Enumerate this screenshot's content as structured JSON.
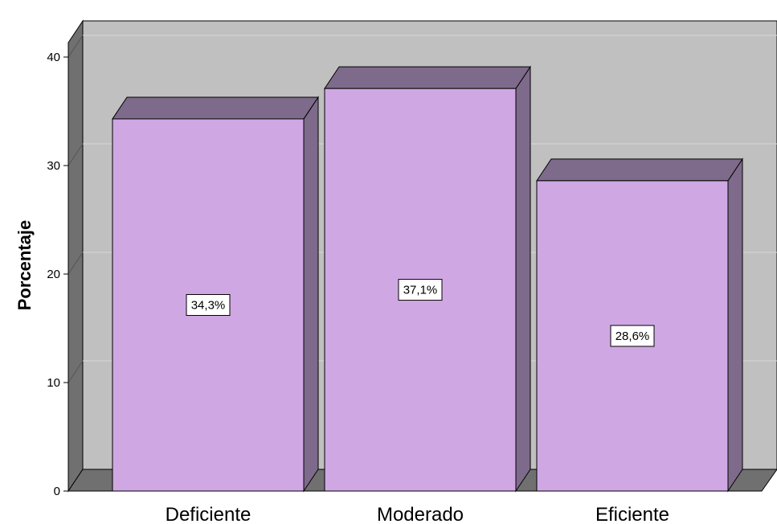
{
  "chart_data": {
    "type": "bar",
    "style": "3d",
    "categories": [
      "Deficiente",
      "Moderado",
      "Eficiente"
    ],
    "values": [
      34.3,
      37.1,
      28.6
    ],
    "data_labels": [
      "34,3%",
      "37,1%",
      "28,6%"
    ],
    "ylabel": "Porcentaje",
    "xlabel": "",
    "title": "",
    "ylim": [
      0,
      40
    ],
    "yticks": [
      "0",
      "10",
      "20",
      "30",
      "40"
    ],
    "grid": true,
    "legend": "none"
  },
  "colors": {
    "bar_front": "#cfa8e3",
    "bar_top": "#7e6a8a",
    "bar_side": "#7e6a8a",
    "back_wall": "#c0c0c0",
    "left_wall": "#707070",
    "floor": "#707070",
    "gridline": "#d8d8d8"
  }
}
